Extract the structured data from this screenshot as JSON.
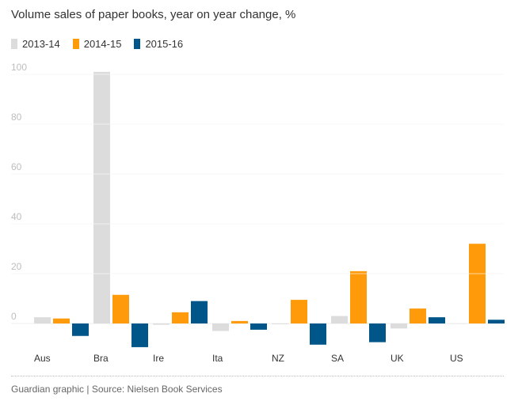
{
  "chart_data": {
    "type": "bar",
    "title": "Volume sales of paper books, year on year change, %",
    "xlabel": "",
    "ylabel": "",
    "ylim": [
      -10,
      100
    ],
    "yticks": [
      0,
      20,
      40,
      60,
      80,
      100
    ],
    "categories": [
      "Aus",
      "Bra",
      "Ire",
      "Ita",
      "NZ",
      "SA",
      "UK",
      "US"
    ],
    "series": [
      {
        "name": "2013-14",
        "color": "#dcdcdc",
        "values": [
          2.5,
          101,
          -0.5,
          -3,
          -0.3,
          3,
          -2,
          0
        ]
      },
      {
        "name": "2014-15",
        "color": "#ff9b0b",
        "values": [
          2,
          11.5,
          4.5,
          1,
          9.5,
          21,
          6,
          32
        ]
      },
      {
        "name": "2015-16",
        "color": "#005689",
        "values": [
          -5,
          -9.5,
          9,
          -2.5,
          -8.5,
          -7.5,
          2.5,
          1.5
        ]
      }
    ]
  },
  "source": "Guardian graphic | Source: Nielsen Book Services"
}
